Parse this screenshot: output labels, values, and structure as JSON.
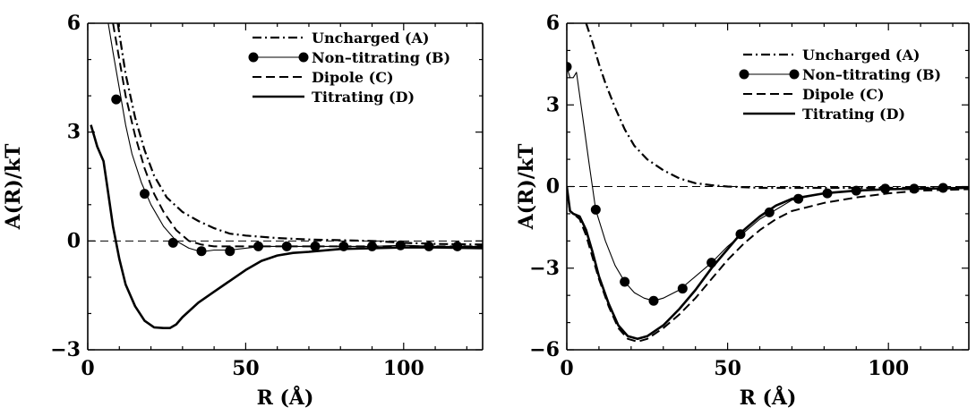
{
  "chart_data": [
    {
      "type": "line",
      "panel": "left",
      "xlabel": "R (Å)",
      "ylabel": "A(R)/kT",
      "xlim": [
        0,
        125
      ],
      "ylim": [
        -3,
        6
      ],
      "xticks": [
        0,
        50,
        100
      ],
      "yticks": [
        -3,
        0,
        3,
        6
      ],
      "reference_line_y": 0,
      "legend_position": "top-right",
      "series": [
        {
          "name": "Uncharged (A)",
          "style": "dash-dot",
          "width": 2.2,
          "marker": false,
          "x": [
            9.5,
            12,
            15,
            18,
            21,
            25,
            30,
            35,
            40,
            45,
            50,
            60,
            70,
            80,
            90,
            100,
            110,
            125
          ],
          "y": [
            6,
            4.6,
            3.4,
            2.5,
            1.8,
            1.2,
            0.8,
            0.55,
            0.35,
            0.2,
            0.15,
            0.08,
            0.04,
            0.02,
            0.0,
            -0.05,
            -0.08,
            -0.1
          ]
        },
        {
          "name": "Non–titrating (B)",
          "style": "solid-thin",
          "width": 1.1,
          "marker": true,
          "x": [
            6.5,
            8,
            10,
            12,
            14,
            17,
            20,
            24,
            28,
            32,
            36,
            40,
            45,
            50,
            55,
            60,
            65,
            70,
            80,
            90,
            100,
            110,
            125
          ],
          "y": [
            6,
            5.2,
            4.2,
            3.2,
            2.4,
            1.6,
            1.0,
            0.4,
            0.0,
            -0.2,
            -0.3,
            -0.25,
            -0.25,
            -0.2,
            -0.15,
            -0.15,
            -0.15,
            -0.15,
            -0.15,
            -0.15,
            -0.12,
            -0.15,
            -0.15
          ],
          "markers_x": [
            9,
            18,
            27,
            36,
            45,
            54,
            63,
            72,
            81,
            90,
            99,
            108,
            117
          ],
          "markers_y": [
            3.9,
            1.3,
            -0.05,
            -0.28,
            -0.28,
            -0.15,
            -0.15,
            -0.15,
            -0.15,
            -0.15,
            -0.12,
            -0.15,
            -0.15
          ]
        },
        {
          "name": "Dipole (C)",
          "style": "dashed",
          "width": 2.0,
          "marker": false,
          "x": [
            8,
            10,
            12,
            15,
            18,
            21,
            24,
            28,
            32,
            36,
            40,
            45,
            50,
            60,
            70,
            80,
            90,
            100,
            110,
            125
          ],
          "y": [
            6,
            5.0,
            4.0,
            2.9,
            2.0,
            1.3,
            0.8,
            0.3,
            0.0,
            -0.1,
            -0.15,
            -0.15,
            -0.15,
            -0.15,
            -0.15,
            -0.15,
            -0.15,
            -0.15,
            -0.15,
            -0.15
          ]
        },
        {
          "name": "Titrating (D)",
          "style": "solid-thick",
          "width": 2.6,
          "marker": false,
          "x": [
            1,
            2,
            3,
            4,
            5,
            6,
            8,
            10,
            12,
            15,
            18,
            21,
            24,
            26,
            28,
            30,
            35,
            40,
            45,
            50,
            55,
            60,
            65,
            70,
            80,
            90,
            100,
            110,
            125
          ],
          "y": [
            3.2,
            2.9,
            2.6,
            2.4,
            2.2,
            1.6,
            0.4,
            -0.5,
            -1.2,
            -1.8,
            -2.2,
            -2.38,
            -2.4,
            -2.4,
            -2.3,
            -2.1,
            -1.7,
            -1.4,
            -1.1,
            -0.8,
            -0.55,
            -0.4,
            -0.33,
            -0.3,
            -0.22,
            -0.2,
            -0.18,
            -0.18,
            -0.2
          ]
        }
      ]
    },
    {
      "type": "line",
      "panel": "right",
      "xlabel": "R (Å)",
      "ylabel": "A(R)/kT",
      "xlim": [
        0,
        125
      ],
      "ylim": [
        -6,
        6
      ],
      "xticks": [
        0,
        50,
        100
      ],
      "yticks": [
        -6,
        -3,
        0,
        3,
        6
      ],
      "reference_line_y": 0,
      "legend_position": "top-right",
      "series": [
        {
          "name": "Uncharged (A)",
          "style": "dash-dot",
          "width": 2.2,
          "marker": false,
          "x": [
            6,
            8,
            10,
            12,
            15,
            18,
            21,
            25,
            30,
            35,
            40,
            45,
            50,
            60,
            70,
            80,
            90,
            100,
            110,
            125
          ],
          "y": [
            6,
            5.3,
            4.5,
            3.8,
            2.9,
            2.1,
            1.5,
            1.0,
            0.6,
            0.3,
            0.12,
            0.05,
            0.0,
            -0.05,
            -0.05,
            -0.05,
            -0.05,
            -0.05,
            -0.05,
            -0.05
          ]
        },
        {
          "name": "Non–titrating (B)",
          "style": "solid-thin",
          "width": 1.1,
          "marker": true,
          "x": [
            0,
            1,
            2,
            3,
            5,
            7,
            9,
            12,
            15,
            18,
            21,
            24,
            27,
            30,
            35,
            40,
            45,
            50,
            55,
            60,
            65,
            70,
            80,
            90,
            100,
            110,
            125
          ],
          "y": [
            4.4,
            4.0,
            4.0,
            4.2,
            2.5,
            0.8,
            -0.85,
            -2.0,
            -2.9,
            -3.5,
            -3.9,
            -4.1,
            -4.2,
            -4.1,
            -3.8,
            -3.3,
            -2.8,
            -2.2,
            -1.7,
            -1.2,
            -0.85,
            -0.5,
            -0.25,
            -0.15,
            -0.08,
            -0.08,
            -0.05
          ],
          "markers_x": [
            0,
            9,
            18,
            27,
            36,
            45,
            54,
            63,
            72,
            81,
            90,
            99,
            108,
            117
          ],
          "markers_y": [
            4.4,
            -0.85,
            -3.5,
            -4.2,
            -3.75,
            -2.8,
            -1.75,
            -0.95,
            -0.45,
            -0.25,
            -0.15,
            -0.08,
            -0.08,
            -0.05
          ]
        },
        {
          "name": "Dipole (C)",
          "style": "dashed",
          "width": 2.0,
          "marker": false,
          "x": [
            0,
            1,
            2,
            4,
            6,
            8,
            10,
            13,
            16,
            19,
            22,
            25,
            30,
            35,
            40,
            45,
            50,
            55,
            60,
            65,
            70,
            80,
            90,
            100,
            110,
            125
          ],
          "y": [
            -0.2,
            -0.9,
            -1.0,
            -1.2,
            -1.8,
            -2.6,
            -3.4,
            -4.4,
            -5.2,
            -5.6,
            -5.7,
            -5.6,
            -5.2,
            -4.7,
            -4.1,
            -3.4,
            -2.7,
            -2.1,
            -1.6,
            -1.2,
            -0.9,
            -0.6,
            -0.4,
            -0.25,
            -0.15,
            -0.1
          ]
        },
        {
          "name": "Titrating (D)",
          "style": "solid-thick",
          "width": 2.6,
          "marker": false,
          "x": [
            0,
            1,
            2,
            4,
            6,
            8,
            10,
            13,
            16,
            19,
            22,
            25,
            30,
            35,
            40,
            45,
            50,
            55,
            60,
            65,
            70,
            80,
            90,
            100,
            110,
            125
          ],
          "y": [
            0.0,
            -0.9,
            -1.0,
            -1.1,
            -1.6,
            -2.4,
            -3.3,
            -4.3,
            -5.1,
            -5.5,
            -5.6,
            -5.5,
            -5.1,
            -4.5,
            -3.8,
            -3.0,
            -2.3,
            -1.6,
            -1.1,
            -0.7,
            -0.45,
            -0.25,
            -0.15,
            -0.1,
            -0.08,
            -0.05
          ]
        }
      ]
    }
  ]
}
